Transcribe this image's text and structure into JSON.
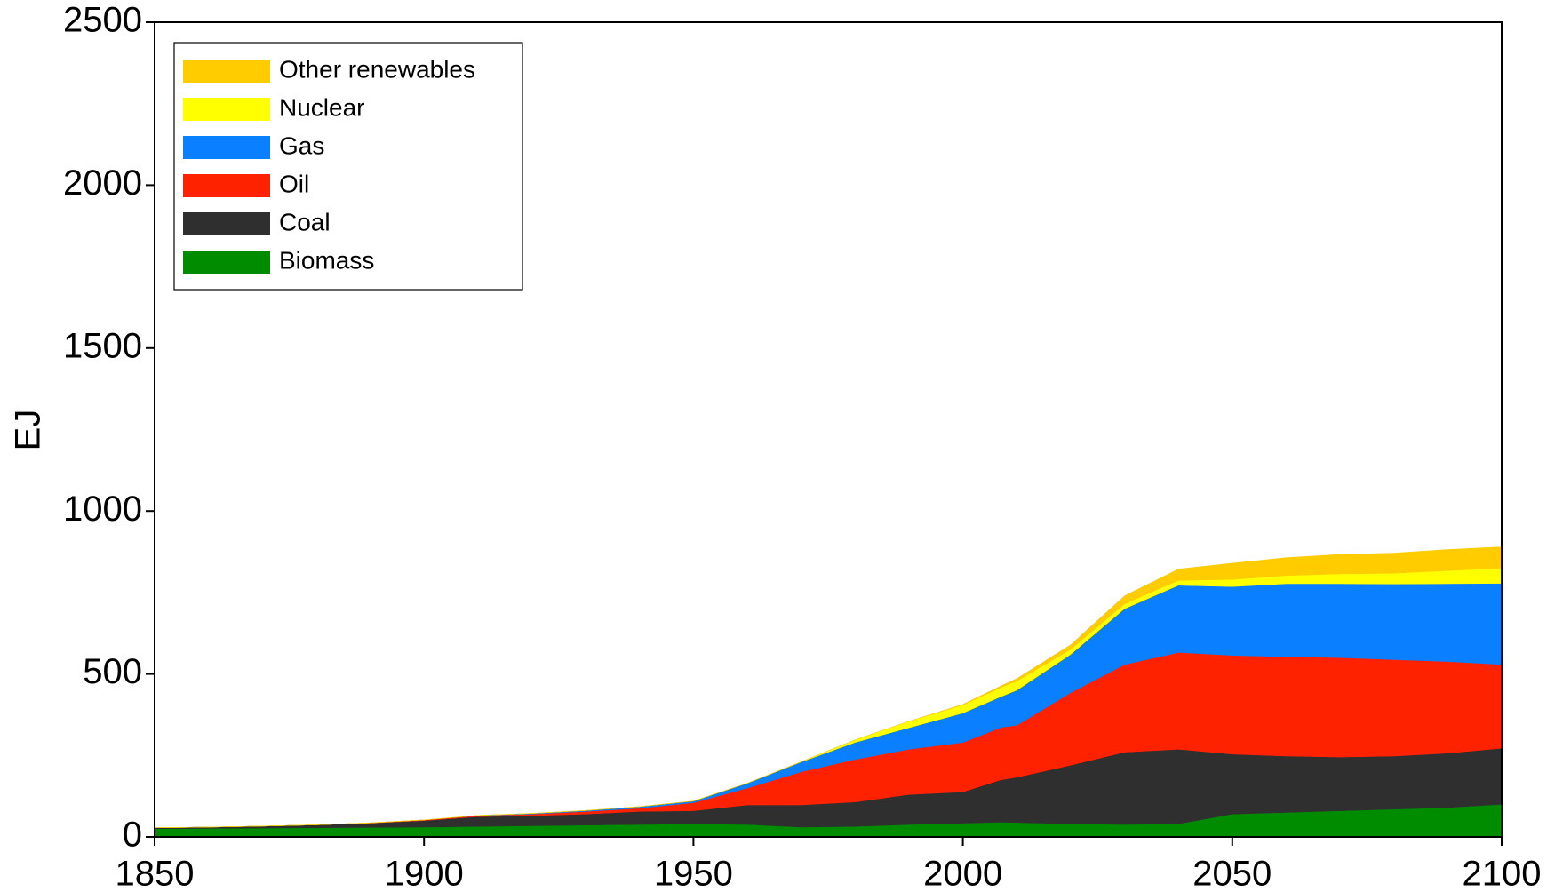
{
  "chart_data": {
    "type": "stacked-area",
    "y_label": "EJ",
    "x": [
      1850,
      1860,
      1870,
      1880,
      1890,
      1900,
      1910,
      1920,
      1930,
      1940,
      1950,
      1960,
      1970,
      1980,
      1990,
      2000,
      2007,
      2010,
      2020,
      2030,
      2040,
      2050,
      2060,
      2070,
      2080,
      2090,
      2100
    ],
    "series": [
      {
        "name": "Biomass",
        "color": "#008c00",
        "values": [
          25,
          26,
          27,
          28,
          29,
          30,
          32,
          34,
          36,
          38,
          40,
          38,
          30,
          32,
          38,
          42,
          45,
          44,
          40,
          38,
          40,
          70,
          75,
          80,
          85,
          90,
          100
        ]
      },
      {
        "name": "Coal",
        "color": "#2f2f2f",
        "values": [
          3,
          4,
          6,
          9,
          13,
          20,
          30,
          31,
          34,
          40,
          40,
          60,
          68,
          75,
          92,
          96,
          130,
          139,
          180,
          222,
          229,
          184,
          173,
          165,
          163,
          167,
          172
        ]
      },
      {
        "name": "Oil",
        "color": "#ff2200",
        "values": [
          0,
          0,
          0,
          0,
          1,
          2,
          3,
          5,
          8,
          10,
          25,
          52,
          102,
          131,
          139,
          152,
          161,
          160,
          223,
          269,
          297,
          303,
          305,
          305,
          296,
          281,
          257
        ]
      },
      {
        "name": "Gas",
        "color": "#0a7fff",
        "values": [
          0,
          0,
          0,
          0,
          0,
          0,
          1,
          2,
          3,
          5,
          5,
          15,
          30,
          52,
          66,
          90,
          94,
          107,
          117,
          171,
          206,
          211,
          224,
          227,
          232,
          239,
          249
        ]
      },
      {
        "name": "Nuclear",
        "color": "#ffff00",
        "values": [
          0,
          0,
          0,
          0,
          0,
          0,
          0,
          0,
          0,
          0,
          0,
          0,
          1,
          8,
          20,
          25,
          28,
          28,
          15,
          15,
          15,
          22,
          25,
          30,
          33,
          40,
          47
        ]
      },
      {
        "name": "Other renewables",
        "color": "#ffcc00",
        "values": [
          0,
          0,
          0,
          0,
          0,
          0,
          0,
          0,
          0,
          0,
          0,
          0,
          0,
          0,
          0,
          2,
          5,
          8,
          15,
          25,
          35,
          50,
          55,
          60,
          62,
          65,
          65
        ]
      }
    ],
    "xlim": [
      1850,
      2100
    ],
    "xticks": [
      1850,
      1900,
      1950,
      2000,
      2050,
      2100
    ],
    "ylim": [
      0,
      2500
    ],
    "yticks": [
      0,
      500,
      1000,
      1500,
      2000,
      2500
    ],
    "grid": false,
    "legend": "upper left"
  }
}
